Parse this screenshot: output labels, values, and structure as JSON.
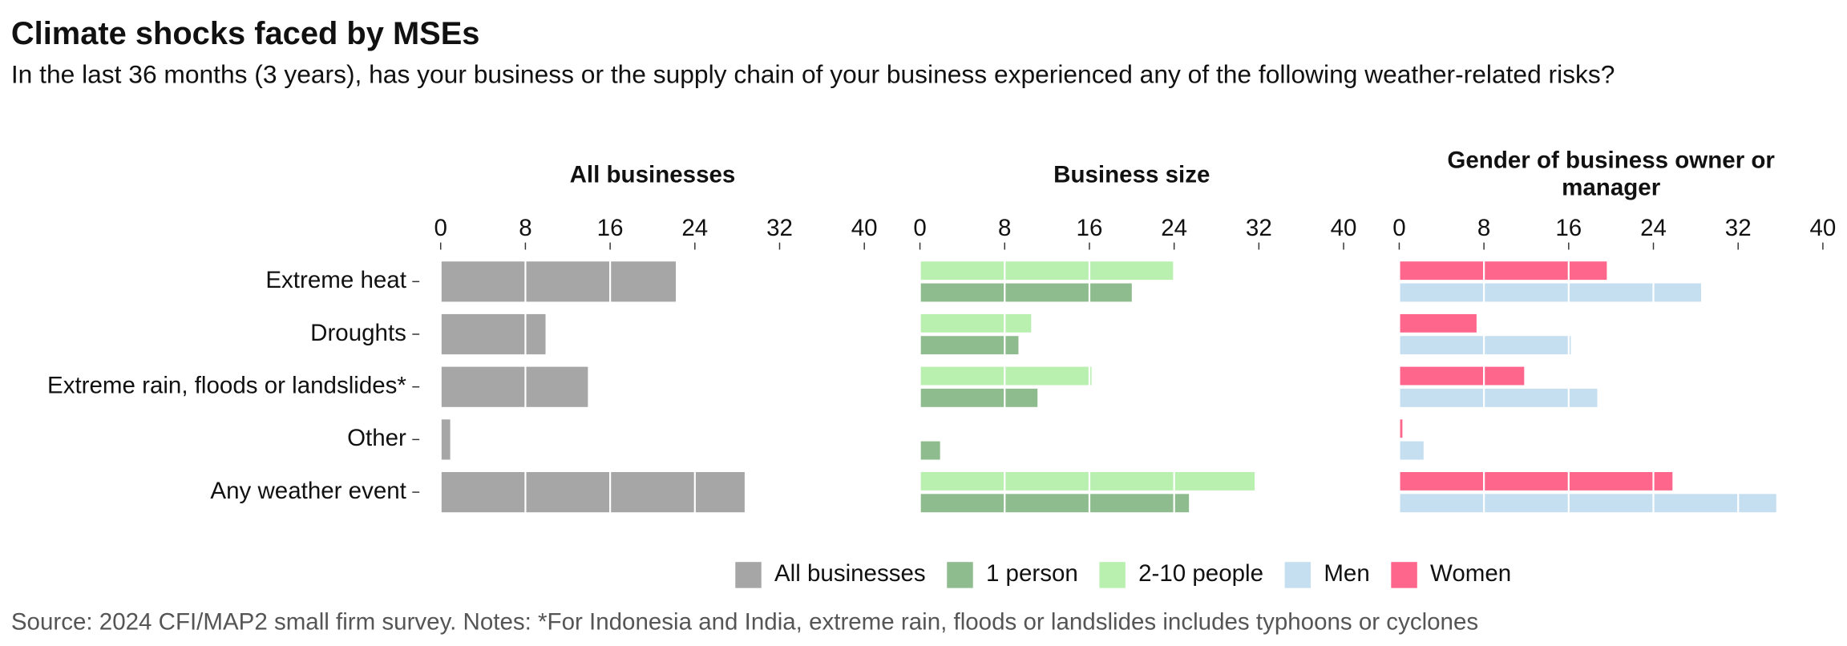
{
  "chart_data": {
    "type": "bar",
    "orientation": "horizontal",
    "title": "Climate shocks faced by MSEs",
    "subtitle": "In the last 36 months (3 years), has your business or the supply chain of your business experienced any of the following weather-related risks?",
    "source": "Source: 2024 CFI/MAP2 small firm survey. Notes: *For Indonesia and India, extreme rain, floods or landslides includes typhoons or cyclones",
    "categories": [
      "Extreme heat",
      "Droughts",
      "Extreme rain, floods or landslides*",
      "Other",
      "Any weather event"
    ],
    "xlim": [
      0,
      40
    ],
    "xticks": [
      0,
      8,
      16,
      24,
      32,
      40
    ],
    "grid": true,
    "legend": "bottom",
    "panels": [
      {
        "title": "All businesses",
        "series": [
          {
            "name": "All businesses",
            "color": "#a6a6a6",
            "values": [
              22.2,
              9.9,
              13.9,
              0.9,
              28.7
            ]
          }
        ]
      },
      {
        "title": "Business size",
        "series": [
          {
            "name": "2-10 people",
            "color": "#b9f0b0",
            "values": [
              23.9,
              10.5,
              16.2,
              0,
              31.6
            ]
          },
          {
            "name": "1 person",
            "color": "#8fbc8f",
            "values": [
              20.0,
              9.3,
              11.1,
              1.9,
              25.4
            ]
          }
        ]
      },
      {
        "title": "Gender of business owner or manager",
        "series": [
          {
            "name": "Women",
            "color": "#ff668c",
            "values": [
              19.6,
              7.3,
              11.8,
              0.3,
              25.8
            ]
          },
          {
            "name": "Men",
            "color": "#c5dff0",
            "values": [
              28.5,
              16.2,
              18.7,
              2.3,
              35.6
            ]
          }
        ]
      }
    ]
  }
}
